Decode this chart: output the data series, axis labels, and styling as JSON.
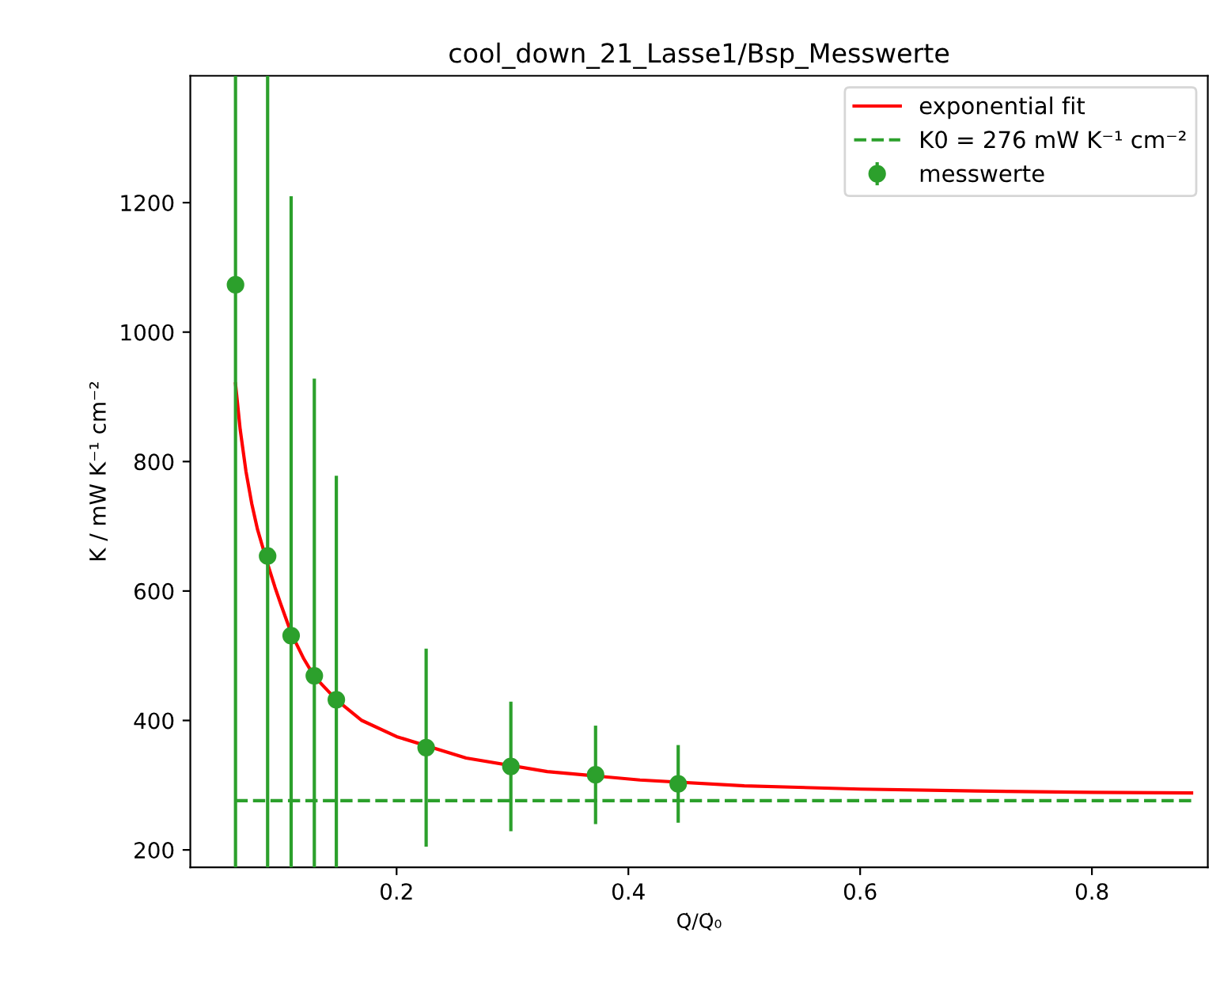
{
  "chart_data": {
    "type": "line",
    "title": "cool_down_21_Lasse1/Bsp_Messwerte",
    "xlabel": "Q̇/Q̇₀",
    "ylabel": "K / mW K⁻¹ cm⁻²",
    "xlim": [
      0.022,
      0.9
    ],
    "ylim": [
      173,
      1396
    ],
    "xticks": [
      0.2,
      0.4,
      0.6,
      0.8
    ],
    "yticks": [
      200,
      400,
      600,
      800,
      1000,
      1200
    ],
    "grid": false,
    "legend": "top right",
    "series": [
      {
        "name": "exponential fit",
        "color": "#ff0000",
        "line_style": "solid",
        "marker": "none",
        "x": [
          0.061,
          0.065,
          0.07,
          0.075,
          0.08,
          0.0887,
          0.095,
          0.1,
          0.109,
          0.12,
          0.129,
          0.148,
          0.17,
          0.2,
          0.26,
          0.33,
          0.41,
          0.5,
          0.6,
          0.7,
          0.8,
          0.886
        ],
        "values": [
          920,
          850,
          785,
          735,
          695,
          642,
          606,
          580,
          535,
          495,
          468,
          432,
          400,
          375,
          342,
          321,
          308,
          299,
          294,
          291,
          289,
          288
        ]
      },
      {
        "name": "K0 = 276 mW K⁻¹ cm⁻²",
        "color": "#2ca02c",
        "line_style": "dashed",
        "marker": "none",
        "x": [
          0.061,
          0.886
        ],
        "values": [
          276,
          276
        ]
      },
      {
        "name": "messwerte",
        "type": "scatter",
        "color": "#2ca02c",
        "marker": "circle",
        "x": [
          0.061,
          0.0887,
          0.109,
          0.129,
          0.148,
          0.2255,
          0.2986,
          0.3717,
          0.443
        ],
        "values": [
          1073,
          654,
          531,
          469,
          432,
          358,
          329,
          316,
          302
        ],
        "errors": [
          [
            173,
            1396
          ],
          [
            173,
            1396
          ],
          [
            173,
            1210
          ],
          [
            173,
            928
          ],
          [
            173,
            778
          ],
          153,
          100,
          76,
          60
        ]
      }
    ]
  }
}
